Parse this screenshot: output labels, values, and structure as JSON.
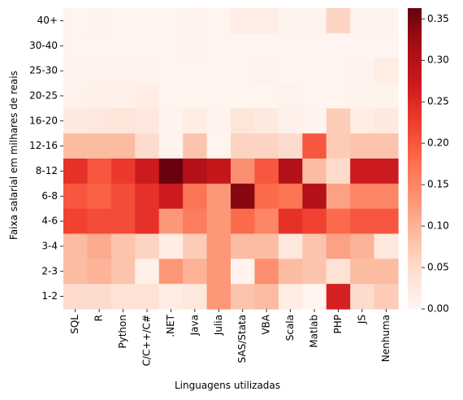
{
  "chart_data": {
    "type": "heatmap",
    "xlabel": "Linguagens utilizadas",
    "ylabel": "Faixa salarial em milhares de reais",
    "x_categories": [
      "SQL",
      "R",
      "Python",
      "C/C++/C#",
      ".NET",
      "Java",
      "Julia",
      "SAS/Stata",
      "VBA",
      "Scala",
      "Matlab",
      "PHP",
      "JS",
      "Nenhuma"
    ],
    "y_categories": [
      "40+",
      "30-40",
      "25-30",
      "20-25",
      "16-20",
      "12-16",
      "8-12",
      "6-8",
      "4-6",
      "3-4",
      "2-3",
      "1-2"
    ],
    "values": [
      [
        0.003,
        0.005,
        0.003,
        0.003,
        0.003,
        0.008,
        0.003,
        0.015,
        0.015,
        0.005,
        0.005,
        0.06,
        0.005,
        0.005
      ],
      [
        0.002,
        0.002,
        0.002,
        0.002,
        0.002,
        0.006,
        0.002,
        0.002,
        0.002,
        0.002,
        0.002,
        0.002,
        0.002,
        0.002
      ],
      [
        0.004,
        0.006,
        0.008,
        0.004,
        0.003,
        0.003,
        0.003,
        0.003,
        0.008,
        0.003,
        0.003,
        0.003,
        0.005,
        0.02
      ],
      [
        0.006,
        0.01,
        0.01,
        0.02,
        0.003,
        0.003,
        0.003,
        0.003,
        0.003,
        0.008,
        0.003,
        0.003,
        0.005,
        0.005
      ],
      [
        0.025,
        0.03,
        0.035,
        0.03,
        0.005,
        0.02,
        0.005,
        0.035,
        0.025,
        0.01,
        0.005,
        0.07,
        0.02,
        0.025
      ],
      [
        0.09,
        0.09,
        0.09,
        0.05,
        0.005,
        0.08,
        0.003,
        0.06,
        0.06,
        0.05,
        0.2,
        0.07,
        0.08,
        0.08
      ],
      [
        0.24,
        0.2,
        0.23,
        0.27,
        0.36,
        0.3,
        0.28,
        0.14,
        0.2,
        0.3,
        0.09,
        0.05,
        0.27,
        0.27
      ],
      [
        0.2,
        0.19,
        0.21,
        0.24,
        0.27,
        0.17,
        0.13,
        0.34,
        0.18,
        0.17,
        0.3,
        0.12,
        0.15,
        0.15
      ],
      [
        0.22,
        0.21,
        0.21,
        0.24,
        0.13,
        0.16,
        0.13,
        0.18,
        0.15,
        0.24,
        0.22,
        0.18,
        0.2,
        0.2
      ],
      [
        0.09,
        0.11,
        0.08,
        0.06,
        0.02,
        0.07,
        0.13,
        0.09,
        0.09,
        0.03,
        0.08,
        0.12,
        0.1,
        0.03
      ],
      [
        0.09,
        0.1,
        0.08,
        0.01,
        0.13,
        0.1,
        0.13,
        0.005,
        0.14,
        0.09,
        0.08,
        0.04,
        0.09,
        0.09
      ],
      [
        0.05,
        0.05,
        0.04,
        0.04,
        0.02,
        0.03,
        0.13,
        0.08,
        0.09,
        0.02,
        0.002,
        0.26,
        0.05,
        0.07
      ]
    ],
    "colormap": "Reds",
    "vmin": 0,
    "vmax": 0.363,
    "colorbar_ticks": [
      "0.00",
      "0.05",
      "0.10",
      "0.15",
      "0.20",
      "0.25",
      "0.30",
      "0.35"
    ],
    "grid": false
  }
}
